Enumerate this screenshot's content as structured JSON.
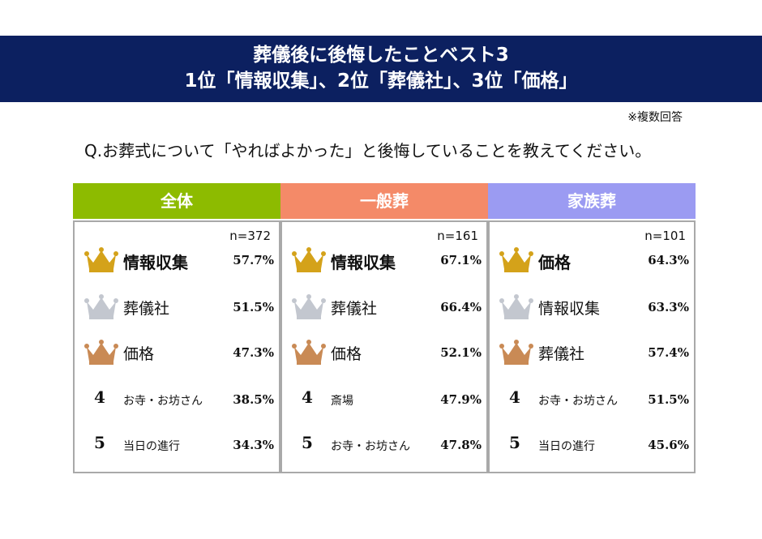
{
  "title": {
    "line1": "葬儀後に後悔したことベスト3",
    "line2": "1位「情報収集」、2位「葬儀社」、3位「価格」"
  },
  "note": "※複数回答",
  "question": "Q.お葬式について「やればよかった」と後悔していることを教えてください。",
  "colors": {
    "banner": "#0c2060",
    "gold": "#d4a21a",
    "silver": "#c3c7cf",
    "bronze": "#c98a55"
  },
  "panels": [
    {
      "title": "全体",
      "color": "#8dbb00",
      "n": "n=372",
      "items": [
        {
          "rank": "1",
          "label": "情報収集",
          "pct": "57.7%",
          "icon": "crown-gold-icon"
        },
        {
          "rank": "2",
          "label": "葬儀社",
          "pct": "51.5%",
          "icon": "crown-silver-icon"
        },
        {
          "rank": "3",
          "label": "価格",
          "pct": "47.3%",
          "icon": "crown-bronze-icon"
        },
        {
          "rank": "4",
          "label": "お寺・お坊さん",
          "pct": "38.5%"
        },
        {
          "rank": "5",
          "label": "当日の進行",
          "pct": "34.3%"
        }
      ]
    },
    {
      "title": "一般葬",
      "color": "#f48a68",
      "n": "n=161",
      "items": [
        {
          "rank": "1",
          "label": "情報収集",
          "pct": "67.1%",
          "icon": "crown-gold-icon"
        },
        {
          "rank": "2",
          "label": "葬儀社",
          "pct": "66.4%",
          "icon": "crown-silver-icon"
        },
        {
          "rank": "3",
          "label": "価格",
          "pct": "52.1%",
          "icon": "crown-bronze-icon"
        },
        {
          "rank": "4",
          "label": "斎場",
          "pct": "47.9%"
        },
        {
          "rank": "5",
          "label": "お寺・お坊さん",
          "pct": "47.8%"
        }
      ]
    },
    {
      "title": "家族葬",
      "color": "#9b9bf2",
      "n": "n=101",
      "items": [
        {
          "rank": "1",
          "label": "価格",
          "pct": "64.3%",
          "icon": "crown-gold-icon"
        },
        {
          "rank": "2",
          "label": "情報収集",
          "pct": "63.3%",
          "icon": "crown-silver-icon"
        },
        {
          "rank": "3",
          "label": "葬儀社",
          "pct": "57.4%",
          "icon": "crown-bronze-icon"
        },
        {
          "rank": "4",
          "label": "お寺・お坊さん",
          "pct": "51.5%"
        },
        {
          "rank": "5",
          "label": "当日の進行",
          "pct": "45.6%"
        }
      ]
    }
  ]
}
